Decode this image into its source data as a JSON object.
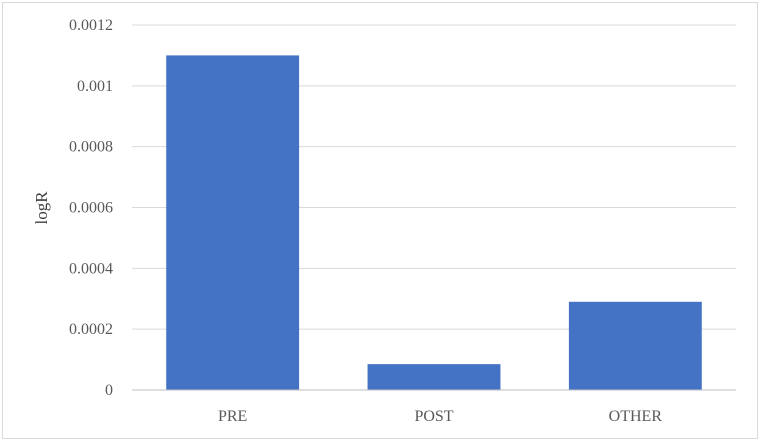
{
  "chart_data": {
    "type": "bar",
    "categories": [
      "PRE",
      "POST",
      "OTHER"
    ],
    "values": [
      0.0011,
      8.5e-05,
      0.00029
    ],
    "title": "",
    "xlabel": "",
    "ylabel": "logR",
    "ylim": [
      0,
      0.0012
    ],
    "yticks": [
      0,
      0.0002,
      0.0004,
      0.0006,
      0.0008,
      0.001,
      0.0012
    ],
    "ytick_labels": [
      "0",
      "0.0002",
      "0.0004",
      "0.0006",
      "0.0008",
      "0.001",
      "0.0012"
    ],
    "grid": true,
    "legend": "none",
    "bar_color": "#4472c4",
    "grid_color": "#d9d9d9",
    "axis_color": "#bfbfbf"
  }
}
